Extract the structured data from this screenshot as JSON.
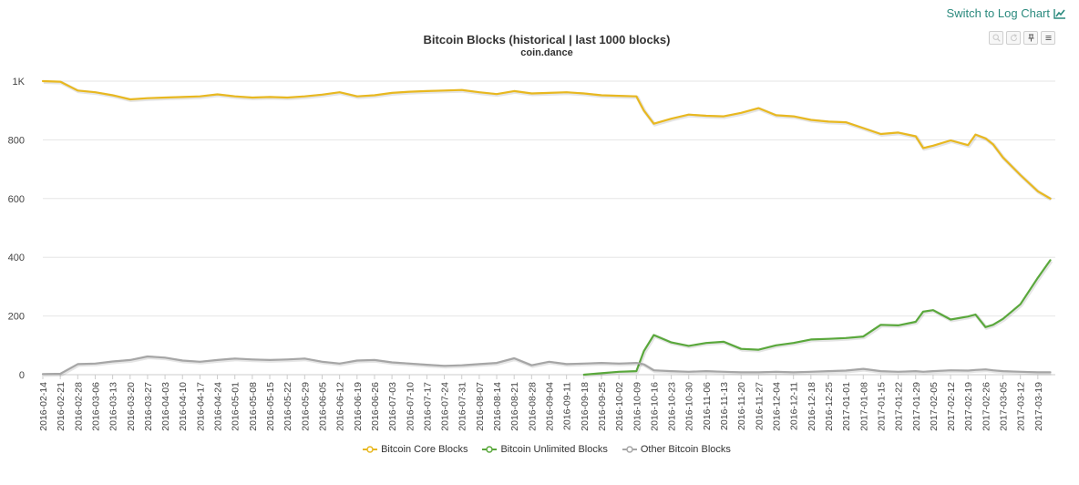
{
  "toolbar": {
    "log_link_label": "Switch to Log Chart"
  },
  "chart_data": {
    "type": "line",
    "title": "Bitcoin Blocks (historical | last 1000 blocks)",
    "subtitle": "coin.dance",
    "xlabel": "",
    "ylabel": "",
    "ylim": [
      0,
      1000
    ],
    "y_ticks": [
      "0",
      "200",
      "400",
      "600",
      "800",
      "1K"
    ],
    "y_tick_values": [
      0,
      200,
      400,
      600,
      800,
      1000
    ],
    "grid": true,
    "legend_position": "bottom-center",
    "x_ticks": [
      "2016-02-14",
      "2016-02-21",
      "2016-02-28",
      "2016-03-06",
      "2016-03-13",
      "2016-03-20",
      "2016-03-27",
      "2016-04-03",
      "2016-04-10",
      "2016-04-17",
      "2016-04-24",
      "2016-05-01",
      "2016-05-08",
      "2016-05-15",
      "2016-05-22",
      "2016-05-29",
      "2016-06-05",
      "2016-06-12",
      "2016-06-19",
      "2016-06-26",
      "2016-07-03",
      "2016-07-10",
      "2016-07-17",
      "2016-07-24",
      "2016-07-31",
      "2016-08-07",
      "2016-08-14",
      "2016-08-21",
      "2016-08-28",
      "2016-09-04",
      "2016-09-11",
      "2016-09-18",
      "2016-09-25",
      "2016-10-02",
      "2016-10-09",
      "2016-10-16",
      "2016-10-23",
      "2016-10-30",
      "2016-11-06",
      "2016-11-13",
      "2016-11-20",
      "2016-11-27",
      "2016-12-04",
      "2016-12-11",
      "2016-12-18",
      "2016-12-25",
      "2017-01-01",
      "2017-01-08",
      "2017-01-15",
      "2017-01-22",
      "2017-01-29",
      "2017-02-05",
      "2017-02-12",
      "2017-02-19",
      "2017-02-26",
      "2017-03-05",
      "2017-03-12",
      "2017-03-19"
    ],
    "x": [
      "2016-02-14",
      "2016-02-21",
      "2016-02-28",
      "2016-03-06",
      "2016-03-13",
      "2016-03-20",
      "2016-03-27",
      "2016-04-03",
      "2016-04-10",
      "2016-04-17",
      "2016-04-24",
      "2016-05-01",
      "2016-05-08",
      "2016-05-15",
      "2016-05-22",
      "2016-05-29",
      "2016-06-05",
      "2016-06-12",
      "2016-06-19",
      "2016-06-26",
      "2016-07-03",
      "2016-07-10",
      "2016-07-17",
      "2016-07-24",
      "2016-07-31",
      "2016-08-07",
      "2016-08-14",
      "2016-08-21",
      "2016-08-28",
      "2016-09-04",
      "2016-09-11",
      "2016-09-18",
      "2016-09-25",
      "2016-10-02",
      "2016-10-09",
      "2016-10-12",
      "2016-10-16",
      "2016-10-23",
      "2016-10-30",
      "2016-11-06",
      "2016-11-13",
      "2016-11-20",
      "2016-11-27",
      "2016-12-04",
      "2016-12-11",
      "2016-12-18",
      "2016-12-25",
      "2017-01-01",
      "2017-01-08",
      "2017-01-15",
      "2017-01-22",
      "2017-01-29",
      "2017-02-01",
      "2017-02-05",
      "2017-02-12",
      "2017-02-19",
      "2017-02-22",
      "2017-02-26",
      "2017-03-01",
      "2017-03-05",
      "2017-03-12",
      "2017-03-19",
      "2017-03-24"
    ],
    "series": [
      {
        "name": "Bitcoin Core Blocks",
        "color": "#e8b820",
        "values": [
          1000,
          998,
          968,
          962,
          952,
          938,
          942,
          944,
          946,
          948,
          955,
          948,
          944,
          946,
          944,
          948,
          954,
          962,
          948,
          952,
          960,
          964,
          966,
          968,
          970,
          962,
          956,
          966,
          958,
          960,
          962,
          958,
          952,
          950,
          948,
          900,
          855,
          872,
          886,
          882,
          880,
          892,
          908,
          884,
          880,
          868,
          862,
          860,
          840,
          820,
          825,
          812,
          772,
          780,
          798,
          782,
          818,
          805,
          785,
          740,
          680,
          625,
          600
        ],
        "y_missing_from_index": null
      },
      {
        "name": "Bitcoin Unlimited Blocks",
        "color": "#5aa83c",
        "values": [
          null,
          null,
          null,
          null,
          null,
          null,
          null,
          null,
          null,
          null,
          null,
          null,
          null,
          null,
          null,
          null,
          null,
          null,
          null,
          null,
          null,
          null,
          null,
          null,
          null,
          null,
          null,
          null,
          null,
          null,
          null,
          0,
          5,
          10,
          12,
          80,
          135,
          110,
          98,
          108,
          112,
          88,
          85,
          100,
          108,
          120,
          122,
          125,
          130,
          170,
          168,
          180,
          215,
          220,
          188,
          198,
          205,
          162,
          170,
          190,
          240,
          330,
          390
        ]
      },
      {
        "name": "Other Bitcoin Blocks",
        "color": "#a6a6a6",
        "values": [
          2,
          3,
          36,
          38,
          45,
          50,
          62,
          58,
          48,
          44,
          50,
          55,
          52,
          50,
          52,
          55,
          44,
          38,
          48,
          50,
          42,
          38,
          34,
          30,
          32,
          36,
          40,
          56,
          32,
          44,
          36,
          38,
          40,
          38,
          40,
          35,
          15,
          12,
          10,
          12,
          10,
          8,
          8,
          10,
          8,
          10,
          12,
          14,
          20,
          12,
          10,
          12,
          10,
          12,
          15,
          14,
          16,
          18,
          15,
          12,
          10,
          8,
          8
        ]
      }
    ]
  }
}
